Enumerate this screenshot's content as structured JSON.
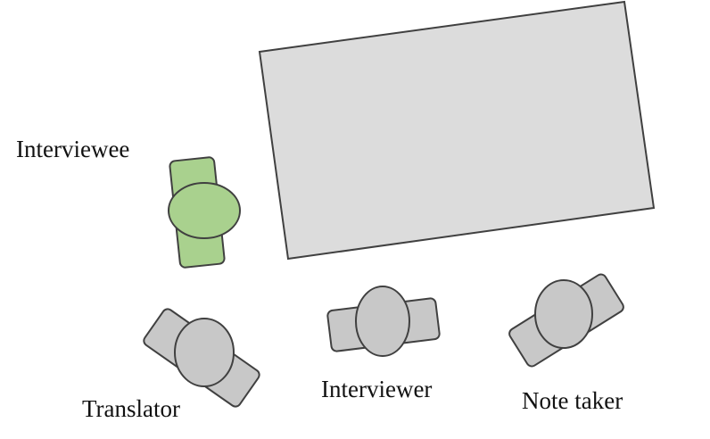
{
  "labels": {
    "interviewee": "Interviewee",
    "translator": "Translator",
    "interviewer": "Interviewer",
    "note_taker": "Note taker"
  },
  "colors": {
    "table_fill": "#dcdcdc",
    "person_fill": "#c8c8c8",
    "interviewee_fill": "#a9d18e",
    "outline": "#404040"
  }
}
